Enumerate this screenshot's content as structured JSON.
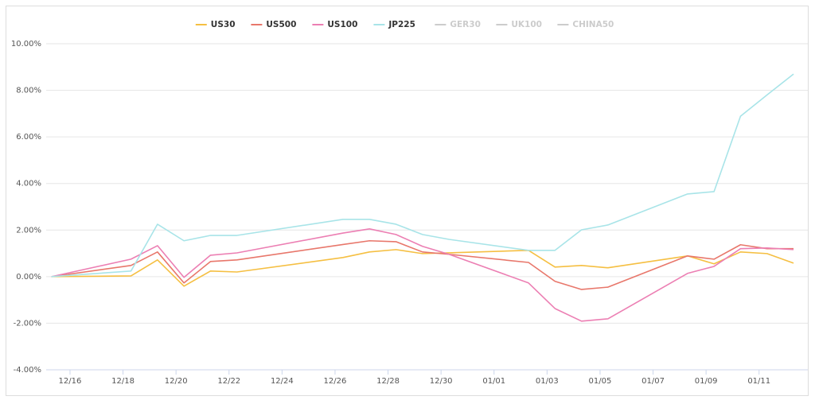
{
  "chart_data": {
    "type": "line",
    "x": [
      -0.7,
      2.3,
      3.3,
      4.3,
      5.3,
      6.3,
      10.3,
      11.3,
      12.3,
      13.3,
      14.3,
      17.3,
      18.3,
      19.3,
      20.3,
      23.3,
      24.3,
      25.3,
      26.3,
      27.3
    ],
    "series": [
      {
        "name": "US30",
        "color": "#f5bf42",
        "values": [
          0,
          0.03,
          0.72,
          -0.41,
          0.24,
          0.2,
          0.82,
          1.06,
          1.16,
          0.99,
          1.02,
          1.13,
          0.41,
          0.48,
          0.38,
          0.89,
          0.55,
          1.06,
          0.99,
          0.58
        ]
      },
      {
        "name": "US500",
        "color": "#e8776b",
        "values": [
          0,
          0.48,
          1.06,
          -0.27,
          0.65,
          0.72,
          1.38,
          1.54,
          1.5,
          1.06,
          0.96,
          0.61,
          -0.2,
          -0.55,
          -0.45,
          0.89,
          0.75,
          1.37,
          1.2,
          1.2
        ]
      },
      {
        "name": "US100",
        "color": "#ec7fb3",
        "values": [
          0,
          0.75,
          1.33,
          -0.03,
          0.92,
          1.02,
          1.87,
          2.05,
          1.81,
          1.3,
          0.96,
          -0.27,
          -1.37,
          -1.91,
          -1.81,
          0.14,
          0.44,
          1.2,
          1.23,
          1.16
        ]
      },
      {
        "name": "JP225",
        "color": "#a8e4e8",
        "values": [
          0,
          0.24,
          2.25,
          1.54,
          1.77,
          1.77,
          2.46,
          2.46,
          2.25,
          1.81,
          1.6,
          1.13,
          1.13,
          2.01,
          2.22,
          3.55,
          3.65,
          6.89,
          7.8,
          8.7
        ]
      },
      {
        "name": "GER30",
        "color": "#cccccc",
        "hidden": true
      },
      {
        "name": "UK100",
        "color": "#cccccc",
        "hidden": true
      },
      {
        "name": "CHINA50",
        "color": "#cccccc",
        "hidden": true
      }
    ],
    "xlim": [
      -0.9,
      27.84
    ],
    "xticks": [
      {
        "value": 0,
        "label": "12/16"
      },
      {
        "value": 2,
        "label": "12/18"
      },
      {
        "value": 4,
        "label": "12/20"
      },
      {
        "value": 6,
        "label": "12/22"
      },
      {
        "value": 8,
        "label": "12/24"
      },
      {
        "value": 10,
        "label": "12/26"
      },
      {
        "value": 12,
        "label": "12/28"
      },
      {
        "value": 14,
        "label": "12/30"
      },
      {
        "value": 16,
        "label": "01/01"
      },
      {
        "value": 18,
        "label": "01/03"
      },
      {
        "value": 20,
        "label": "01/05"
      },
      {
        "value": 22,
        "label": "01/07"
      },
      {
        "value": 24,
        "label": "01/09"
      },
      {
        "value": 26,
        "label": "01/11"
      }
    ],
    "ylim": [
      -4,
      10
    ],
    "yticks": [
      {
        "value": -4,
        "label": "-4.00%"
      },
      {
        "value": -2,
        "label": "-2.00%"
      },
      {
        "value": 0,
        "label": "0.00%"
      },
      {
        "value": 2,
        "label": "2.00%"
      },
      {
        "value": 4,
        "label": "4.00%"
      },
      {
        "value": 6,
        "label": "6.00%"
      },
      {
        "value": 8,
        "label": "8.00%"
      },
      {
        "value": 10,
        "label": "10.00%"
      }
    ],
    "grid": true,
    "legend": "top"
  }
}
